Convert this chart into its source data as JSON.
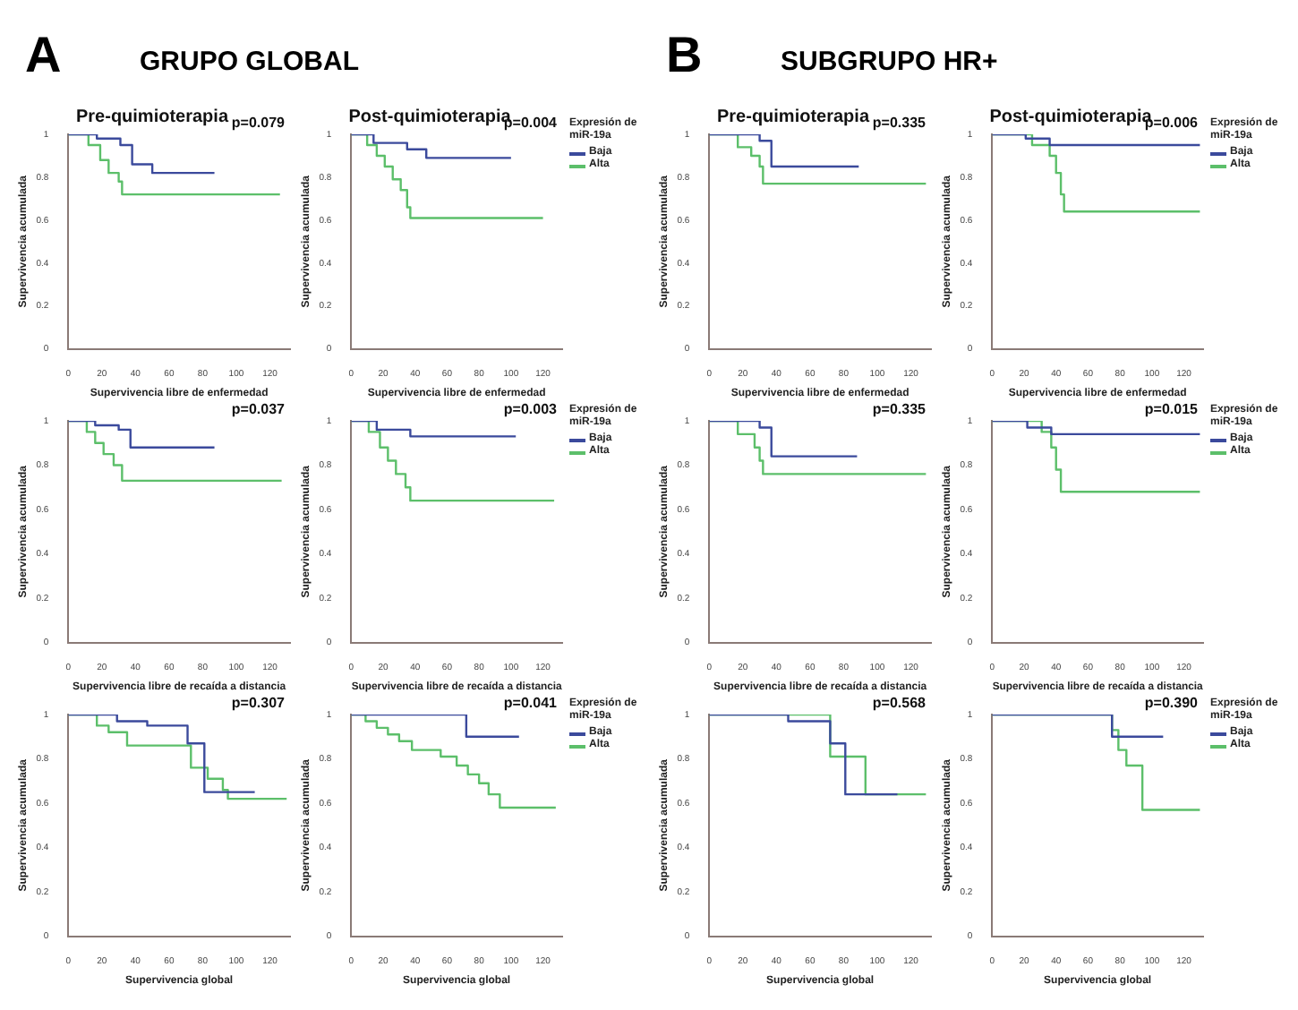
{
  "chart_data": [
    {
      "type": "step",
      "title": "Pre-quimioterapia",
      "xlabel": "Supervivencia libre de enfermedad",
      "ylabel": "Supervivencia acumulada",
      "annotations": [
        "A",
        "GRUPO GLOBAL",
        "p=0.079"
      ],
      "xlim": [
        0,
        132
      ],
      "ylim": [
        0,
        1
      ],
      "xticks": [
        0,
        20,
        40,
        60,
        80,
        100,
        120
      ],
      "yticks": [
        0,
        0.2,
        0.4,
        0.6,
        0.8,
        1
      ],
      "grid": false,
      "series": [
        {
          "color": "#3b4a9c",
          "x": [
            0,
            17,
            31,
            38,
            50,
            87
          ],
          "values": [
            1,
            0.98,
            0.95,
            0.86,
            0.82,
            0.82
          ]
        },
        {
          "color": "#5cbf6a",
          "x": [
            0,
            12,
            19,
            24,
            30,
            32,
            126
          ],
          "values": [
            1,
            0.95,
            0.88,
            0.82,
            0.78,
            0.72,
            0.72
          ]
        }
      ]
    },
    {
      "type": "step",
      "title": "Post-quimioterapia",
      "xlabel": "Supervivencia libre de enfermedad",
      "ylabel": "Supervivencia acumulada",
      "legend_title": "Expresión de miR-19a",
      "legend": "right",
      "annotations": [
        "p=0.004"
      ],
      "xlim": [
        0,
        132
      ],
      "ylim": [
        0,
        1
      ],
      "xticks": [
        0,
        20,
        40,
        60,
        80,
        100,
        120
      ],
      "yticks": [
        0,
        0.2,
        0.4,
        0.6,
        0.8,
        1
      ],
      "grid": false,
      "series": [
        {
          "name": "Baja",
          "color": "#3b4a9c",
          "x": [
            0,
            14,
            35,
            47,
            100
          ],
          "values": [
            1,
            0.96,
            0.93,
            0.89,
            0.89
          ]
        },
        {
          "name": "Alta",
          "color": "#5cbf6a",
          "x": [
            0,
            10,
            16,
            21,
            26,
            31,
            35,
            37,
            120
          ],
          "values": [
            1,
            0.95,
            0.9,
            0.85,
            0.79,
            0.74,
            0.66,
            0.61,
            0.61
          ]
        }
      ]
    },
    {
      "type": "step",
      "xlabel": "Supervivencia libre de recaída a distancia",
      "ylabel": "Supervivencia acumulada",
      "annotations": [
        "p=0.037"
      ],
      "xlim": [
        0,
        132
      ],
      "ylim": [
        0,
        1
      ],
      "xticks": [
        0,
        20,
        40,
        60,
        80,
        100,
        120
      ],
      "yticks": [
        0,
        0.2,
        0.4,
        0.6,
        0.8,
        1
      ],
      "grid": false,
      "series": [
        {
          "color": "#3b4a9c",
          "x": [
            0,
            16,
            30,
            37,
            87
          ],
          "values": [
            1,
            0.98,
            0.96,
            0.88,
            0.88
          ]
        },
        {
          "color": "#5cbf6a",
          "x": [
            0,
            11,
            16,
            21,
            27,
            32,
            127
          ],
          "values": [
            1,
            0.95,
            0.9,
            0.85,
            0.8,
            0.73,
            0.73
          ]
        }
      ]
    },
    {
      "type": "step",
      "xlabel": "Supervivencia libre de recaída a distancia",
      "ylabel": "Supervivencia acumulada",
      "legend_title": "Expresión de miR-19a",
      "legend": "right",
      "annotations": [
        "p=0.003"
      ],
      "xlim": [
        0,
        132
      ],
      "ylim": [
        0,
        1
      ],
      "xticks": [
        0,
        20,
        40,
        60,
        80,
        100,
        120
      ],
      "yticks": [
        0,
        0.2,
        0.4,
        0.6,
        0.8,
        1
      ],
      "grid": false,
      "series": [
        {
          "name": "Baja",
          "color": "#3b4a9c",
          "x": [
            0,
            16,
            37,
            103
          ],
          "values": [
            1,
            0.96,
            0.93,
            0.93
          ]
        },
        {
          "name": "Alta",
          "color": "#5cbf6a",
          "x": [
            0,
            11,
            18,
            23,
            28,
            34,
            37,
            127
          ],
          "values": [
            1,
            0.95,
            0.88,
            0.82,
            0.76,
            0.7,
            0.64,
            0.64
          ]
        }
      ]
    },
    {
      "type": "step",
      "xlabel": "Supervivencia global",
      "ylabel": "Supervivencia acumulada",
      "annotations": [
        "p=0.307"
      ],
      "xlim": [
        0,
        132
      ],
      "ylim": [
        0,
        1
      ],
      "xticks": [
        0,
        20,
        40,
        60,
        80,
        100,
        120
      ],
      "yticks": [
        0,
        0.2,
        0.4,
        0.6,
        0.8,
        1
      ],
      "grid": false,
      "series": [
        {
          "color": "#3b4a9c",
          "x": [
            0,
            29,
            47,
            71,
            81,
            111
          ],
          "values": [
            1,
            0.97,
            0.95,
            0.87,
            0.65,
            0.65
          ]
        },
        {
          "color": "#5cbf6a",
          "x": [
            0,
            17,
            24,
            35,
            73,
            83,
            92,
            95,
            130
          ],
          "values": [
            1,
            0.95,
            0.92,
            0.86,
            0.76,
            0.71,
            0.66,
            0.62,
            0.62
          ]
        }
      ]
    },
    {
      "type": "step",
      "xlabel": "Supervivencia global",
      "ylabel": "Supervivencia acumulada",
      "legend_title": "Expresión de miR-19a",
      "legend": "right",
      "annotations": [
        "p=0.041"
      ],
      "xlim": [
        0,
        132
      ],
      "ylim": [
        0,
        1
      ],
      "xticks": [
        0,
        20,
        40,
        60,
        80,
        100,
        120
      ],
      "yticks": [
        0,
        0.2,
        0.4,
        0.6,
        0.8,
        1
      ],
      "grid": false,
      "series": [
        {
          "name": "Baja",
          "color": "#3b4a9c",
          "x": [
            0,
            72,
            105
          ],
          "values": [
            1,
            0.9,
            0.9
          ]
        },
        {
          "name": "Alta",
          "color": "#5cbf6a",
          "x": [
            0,
            9,
            16,
            23,
            30,
            38,
            56,
            66,
            73,
            80,
            86,
            93,
            128
          ],
          "values": [
            1,
            0.97,
            0.94,
            0.91,
            0.88,
            0.84,
            0.81,
            0.77,
            0.73,
            0.69,
            0.64,
            0.58,
            0.58
          ]
        }
      ]
    },
    {
      "type": "step",
      "title": "Pre-quimioterapia",
      "xlabel": "Supervivencia libre de enfermedad",
      "ylabel": "Supervivencia acumulada",
      "annotations": [
        "B",
        "SUBGRUPO HR+",
        "p=0.335"
      ],
      "xlim": [
        0,
        132
      ],
      "ylim": [
        0,
        1
      ],
      "xticks": [
        0,
        20,
        40,
        60,
        80,
        100,
        120
      ],
      "yticks": [
        0,
        0.2,
        0.4,
        0.6,
        0.8,
        1
      ],
      "grid": false,
      "series": [
        {
          "color": "#3b4a9c",
          "x": [
            0,
            30,
            37,
            89
          ],
          "values": [
            1,
            0.97,
            0.85,
            0.85
          ]
        },
        {
          "color": "#5cbf6a",
          "x": [
            0,
            17,
            25,
            30,
            32,
            129
          ],
          "values": [
            1,
            0.94,
            0.9,
            0.85,
            0.77,
            0.77
          ]
        }
      ]
    },
    {
      "type": "step",
      "title": "Post-quimioterapia",
      "xlabel": "Supervivencia libre de enfermedad",
      "ylabel": "Supervivencia acumulada",
      "legend_title": "Expresión de miR-19a",
      "legend": "right",
      "annotations": [
        "p=0.006"
      ],
      "xlim": [
        0,
        132
      ],
      "ylim": [
        0,
        1
      ],
      "xticks": [
        0,
        20,
        40,
        60,
        80,
        100,
        120
      ],
      "yticks": [
        0,
        0.2,
        0.4,
        0.6,
        0.8,
        1
      ],
      "grid": false,
      "series": [
        {
          "name": "Baja",
          "color": "#3b4a9c",
          "x": [
            0,
            21,
            36,
            130
          ],
          "values": [
            1,
            0.98,
            0.95,
            0.95
          ]
        },
        {
          "name": "Alta",
          "color": "#5cbf6a",
          "x": [
            0,
            25,
            36,
            40,
            43,
            45,
            130
          ],
          "values": [
            1,
            0.95,
            0.9,
            0.82,
            0.72,
            0.64,
            0.64
          ]
        }
      ]
    },
    {
      "type": "step",
      "xlabel": "Supervivencia libre de recaída a distancia",
      "ylabel": "Supervivencia acumulada",
      "annotations": [
        "p=0.335"
      ],
      "xlim": [
        0,
        132
      ],
      "ylim": [
        0,
        1
      ],
      "xticks": [
        0,
        20,
        40,
        60,
        80,
        100,
        120
      ],
      "yticks": [
        0,
        0.2,
        0.4,
        0.6,
        0.8,
        1
      ],
      "grid": false,
      "series": [
        {
          "color": "#3b4a9c",
          "x": [
            0,
            30,
            37,
            88
          ],
          "values": [
            1,
            0.97,
            0.84,
            0.84
          ]
        },
        {
          "color": "#5cbf6a",
          "x": [
            0,
            17,
            27,
            30,
            32,
            129
          ],
          "values": [
            1,
            0.94,
            0.88,
            0.82,
            0.76,
            0.76
          ]
        }
      ]
    },
    {
      "type": "step",
      "xlabel": "Supervivencia libre de recaída a distancia",
      "ylabel": "Supervivencia acumulada",
      "legend_title": "Expresión de miR-19a",
      "legend": "right",
      "annotations": [
        "p=0.015"
      ],
      "xlim": [
        0,
        132
      ],
      "ylim": [
        0,
        1
      ],
      "xticks": [
        0,
        20,
        40,
        60,
        80,
        100,
        120
      ],
      "yticks": [
        0,
        0.2,
        0.4,
        0.6,
        0.8,
        1
      ],
      "grid": false,
      "series": [
        {
          "name": "Baja",
          "color": "#3b4a9c",
          "x": [
            0,
            22,
            37,
            130
          ],
          "values": [
            1,
            0.97,
            0.94,
            0.94
          ]
        },
        {
          "name": "Alta",
          "color": "#5cbf6a",
          "x": [
            0,
            31,
            37,
            40,
            43,
            130
          ],
          "values": [
            1,
            0.95,
            0.88,
            0.78,
            0.68,
            0.68
          ]
        }
      ]
    },
    {
      "type": "step",
      "xlabel": "Supervivencia global",
      "ylabel": "Supervivencia acumulada",
      "annotations": [
        "p=0.568"
      ],
      "xlim": [
        0,
        132
      ],
      "ylim": [
        0,
        1
      ],
      "xticks": [
        0,
        20,
        40,
        60,
        80,
        100,
        120
      ],
      "yticks": [
        0,
        0.2,
        0.4,
        0.6,
        0.8,
        1
      ],
      "grid": false,
      "series": [
        {
          "color": "#3b4a9c",
          "x": [
            0,
            47,
            72,
            81,
            112
          ],
          "values": [
            1,
            0.97,
            0.87,
            0.64,
            0.64
          ]
        },
        {
          "color": "#5cbf6a",
          "x": [
            0,
            72,
            93,
            129
          ],
          "values": [
            1,
            0.81,
            0.64,
            0.64
          ]
        }
      ]
    },
    {
      "type": "step",
      "xlabel": "Supervivencia global",
      "ylabel": "Supervivencia acumulada",
      "legend_title": "Expresión de miR-19a",
      "legend": "right",
      "annotations": [
        "p=0.390"
      ],
      "xlim": [
        0,
        132
      ],
      "ylim": [
        0,
        1
      ],
      "xticks": [
        0,
        20,
        40,
        60,
        80,
        100,
        120
      ],
      "yticks": [
        0,
        0.2,
        0.4,
        0.6,
        0.8,
        1
      ],
      "grid": false,
      "series": [
        {
          "name": "Baja",
          "color": "#3b4a9c",
          "x": [
            0,
            75,
            107
          ],
          "values": [
            1,
            0.9,
            0.9
          ]
        },
        {
          "name": "Alta",
          "color": "#5cbf6a",
          "x": [
            0,
            75,
            79,
            84,
            94,
            130
          ],
          "values": [
            1,
            0.93,
            0.84,
            0.77,
            0.57,
            0.57
          ]
        }
      ]
    }
  ]
}
